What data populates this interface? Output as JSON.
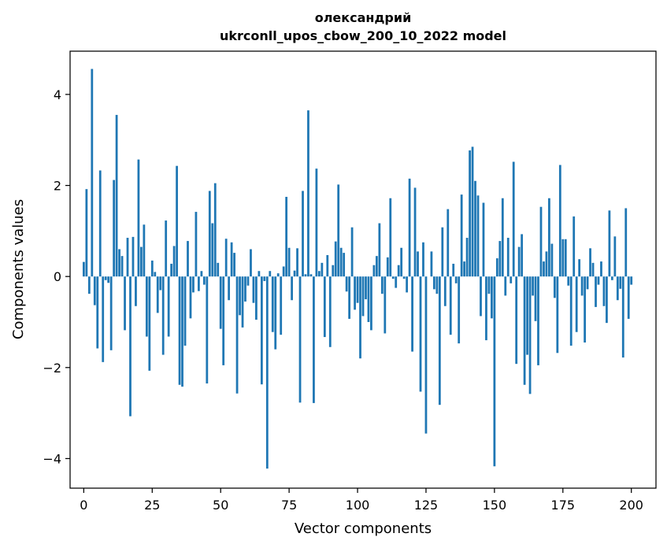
{
  "chart_data": {
    "type": "bar",
    "title_line1": "олександрий",
    "title_line2": "ukrconll_upos_cbow_200_10_2022 model",
    "xlabel": "Vector components",
    "ylabel": "Components values",
    "xlim": [
      -5,
      209
    ],
    "ylim": [
      -4.65,
      4.95
    ],
    "xticks": [
      0,
      25,
      50,
      75,
      100,
      125,
      150,
      175,
      200
    ],
    "yticks": [
      -4,
      -2,
      0,
      2,
      4
    ],
    "ytick_labels": [
      "−4",
      "−2",
      "0",
      "2",
      "4"
    ],
    "bar_color": "#1f77b4",
    "grid": false,
    "values": [
      0.32,
      1.92,
      -0.38,
      4.56,
      -0.63,
      -1.58,
      2.33,
      -1.88,
      -0.08,
      -0.14,
      -1.62,
      2.12,
      3.55,
      0.6,
      0.45,
      -1.18,
      0.85,
      -3.07,
      0.87,
      -0.65,
      2.57,
      0.65,
      1.14,
      -1.32,
      -2.07,
      0.35,
      0.1,
      -0.8,
      -0.3,
      -1.72,
      1.23,
      -1.32,
      0.28,
      0.67,
      2.43,
      -2.38,
      -2.42,
      -1.52,
      0.78,
      -0.92,
      -0.35,
      1.42,
      -0.32,
      0.12,
      -0.18,
      -2.35,
      1.88,
      1.17,
      2.05,
      0.3,
      -1.15,
      -1.95,
      0.83,
      -0.52,
      0.75,
      0.52,
      -2.57,
      -0.85,
      -1.12,
      -0.55,
      -0.2,
      0.6,
      -0.58,
      -0.95,
      0.12,
      -2.37,
      -0.1,
      -4.22,
      0.12,
      -1.22,
      -1.6,
      0.07,
      -1.28,
      0.22,
      1.75,
      0.63,
      -0.52,
      0.13,
      0.62,
      -2.77,
      1.88,
      0.05,
      3.65,
      0.05,
      -2.78,
      2.37,
      0.12,
      0.3,
      -1.33,
      0.47,
      -1.55,
      0.25,
      0.77,
      2.02,
      0.63,
      0.52,
      -0.33,
      -0.93,
      1.08,
      -0.73,
      -0.58,
      -1.8,
      -0.87,
      -0.5,
      -1.0,
      -1.18,
      0.25,
      0.45,
      1.17,
      -0.38,
      -1.25,
      0.42,
      1.72,
      -0.05,
      -0.25,
      0.25,
      0.63,
      -0.05,
      -0.35,
      2.15,
      -1.65,
      1.95,
      0.55,
      -2.53,
      0.75,
      -3.45,
      0.0,
      0.55,
      -0.28,
      -0.38,
      -2.82,
      1.08,
      -0.65,
      1.48,
      -1.28,
      0.28,
      -0.15,
      -1.47,
      1.8,
      0.33,
      0.85,
      2.77,
      2.85,
      2.1,
      1.78,
      -0.87,
      1.62,
      -1.4,
      -0.38,
      -0.92,
      -4.17,
      0.4,
      0.78,
      1.72,
      -0.42,
      0.85,
      -0.15,
      2.52,
      -1.92,
      0.65,
      0.93,
      -2.38,
      -1.72,
      -2.58,
      -0.42,
      -0.98,
      -1.95,
      1.53,
      0.33,
      0.55,
      1.72,
      0.72,
      -0.47,
      -1.68,
      2.45,
      0.82,
      0.82,
      -0.2,
      -1.52,
      1.32,
      -1.22,
      0.38,
      -0.42,
      -1.45,
      -0.28,
      0.62,
      0.3,
      -0.67,
      -0.18,
      0.33,
      -0.65,
      -1.02,
      1.45,
      -0.08,
      0.88,
      -0.52,
      -0.27,
      -1.78,
      1.5,
      -0.93,
      -0.18
    ]
  }
}
